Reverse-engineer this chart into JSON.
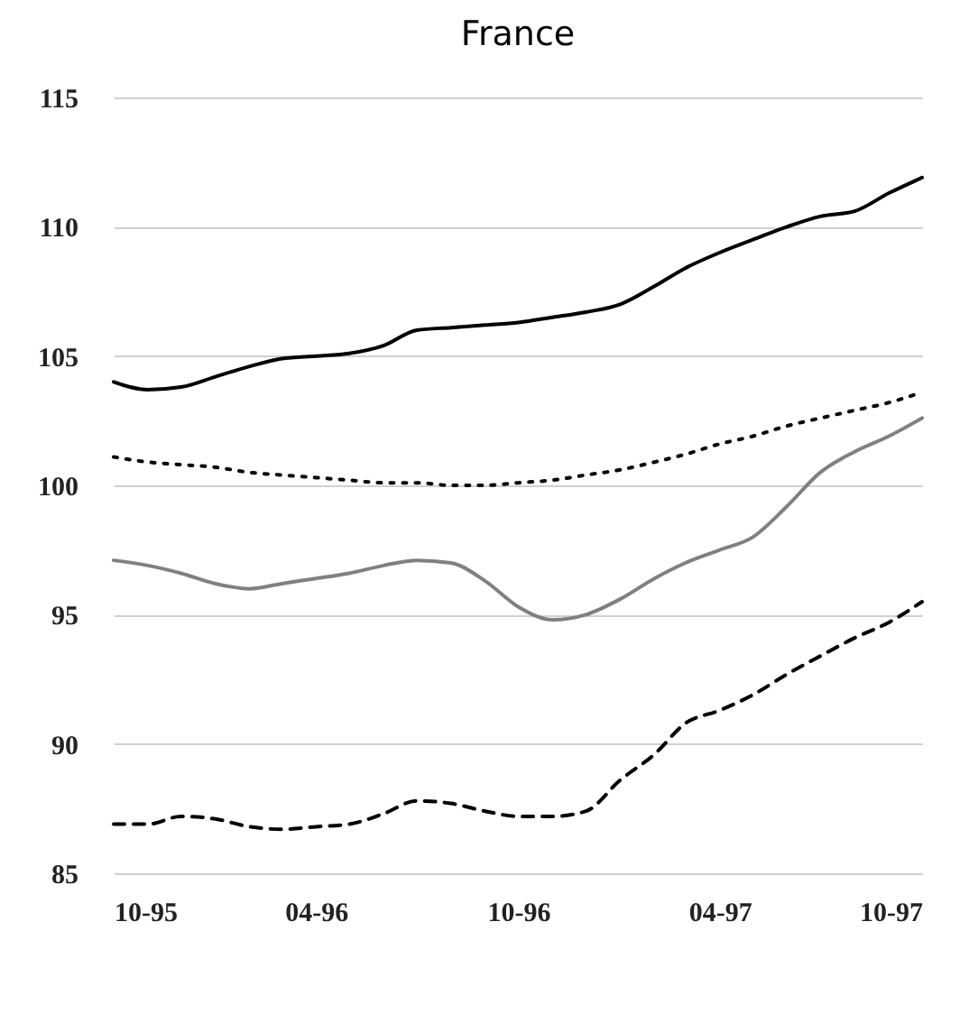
{
  "chart_data": {
    "type": "line",
    "title": "France",
    "x": [
      "1995-10",
      "1995-11",
      "1995-12",
      "1996-01",
      "1996-02",
      "1996-03",
      "1996-04",
      "1996-05",
      "1996-06",
      "1996-07",
      "1996-08",
      "1996-09",
      "1996-10",
      "1996-11",
      "1996-12",
      "1997-01",
      "1997-02",
      "1997-03",
      "1997-04",
      "1997-05",
      "1997-06",
      "1997-07",
      "1997-08",
      "1997-09",
      "1997-10"
    ],
    "xlim": [
      "1995-10",
      "1997-10"
    ],
    "xticks": [
      {
        "value": "1995-10",
        "label": "10-95"
      },
      {
        "value": "1996-04",
        "label": "04-96"
      },
      {
        "value": "1996-10",
        "label": "10-96"
      },
      {
        "value": "1997-04",
        "label": "04-97"
      },
      {
        "value": "1997-10",
        "label": "10-97"
      }
    ],
    "ylim": [
      85,
      115
    ],
    "yticks": [
      85,
      90,
      95,
      100,
      105,
      110,
      115
    ],
    "grid": "y",
    "series": [
      {
        "color": "#000000",
        "line_style": "solid",
        "values": [
          104.0,
          103.7,
          103.8,
          104.2,
          104.6,
          104.9,
          105.0,
          105.1,
          105.4,
          106.0,
          106.1,
          106.2,
          106.3,
          106.5,
          106.7,
          107.0,
          107.7,
          108.4,
          109.0,
          109.5,
          110.0,
          110.4,
          110.6,
          111.3,
          111.9
        ]
      },
      {
        "color": "#000000",
        "line_style": "dotted",
        "values": [
          101.1,
          100.9,
          100.8,
          100.7,
          100.5,
          100.4,
          100.3,
          100.2,
          100.1,
          100.1,
          100.0,
          100.0,
          100.1,
          100.2,
          100.4,
          100.6,
          100.9,
          101.2,
          101.6,
          101.9,
          102.3,
          102.6,
          102.9,
          103.2,
          103.6
        ]
      },
      {
        "color": "#808080",
        "line_style": "solid",
        "values": [
          97.1,
          96.9,
          96.6,
          96.2,
          96.0,
          96.2,
          96.4,
          96.6,
          96.9,
          97.1,
          97.0,
          96.3,
          95.3,
          94.8,
          95.0,
          95.6,
          96.4,
          97.0,
          97.5,
          98.0,
          99.2,
          100.5,
          101.3,
          101.9,
          102.6
        ]
      },
      {
        "color": "#000000",
        "line_style": "dashed",
        "values": [
          86.9,
          86.9,
          87.2,
          87.1,
          86.8,
          86.7,
          86.8,
          86.9,
          87.3,
          87.8,
          87.7,
          87.4,
          87.2,
          87.2,
          87.4,
          88.6,
          89.6,
          90.8,
          91.3,
          91.9,
          92.7,
          93.4,
          94.1,
          94.7,
          95.5
        ]
      }
    ]
  }
}
